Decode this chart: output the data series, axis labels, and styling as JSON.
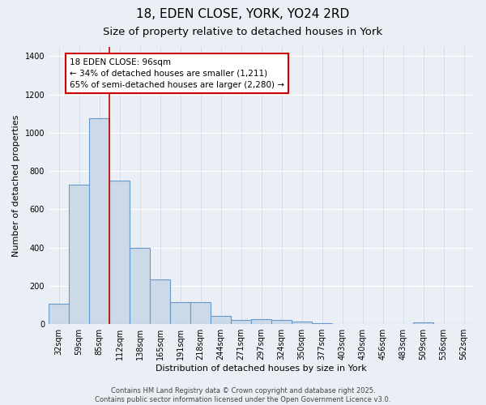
{
  "title": "18, EDEN CLOSE, YORK, YO24 2RD",
  "subtitle": "Size of property relative to detached houses in York",
  "xlabel": "Distribution of detached houses by size in York",
  "ylabel": "Number of detached properties",
  "bin_labels": [
    "32sqm",
    "59sqm",
    "85sqm",
    "112sqm",
    "138sqm",
    "165sqm",
    "191sqm",
    "218sqm",
    "244sqm",
    "271sqm",
    "297sqm",
    "324sqm",
    "350sqm",
    "377sqm",
    "403sqm",
    "430sqm",
    "456sqm",
    "483sqm",
    "509sqm",
    "536sqm",
    "562sqm"
  ],
  "bin_values": [
    105,
    730,
    1075,
    750,
    400,
    235,
    115,
    115,
    45,
    20,
    25,
    20,
    15,
    5,
    0,
    0,
    0,
    0,
    10,
    0,
    0
  ],
  "bar_color": "#ccd9e8",
  "bar_edge_color": "#6699cc",
  "bar_edge_width": 0.8,
  "background_color": "#eaeef5",
  "annotation_text": "18 EDEN CLOSE: 96sqm\n← 34% of detached houses are smaller (1,211)\n65% of semi-detached houses are larger (2,280) →",
  "annotation_box_color": "#ffffff",
  "annotation_box_edge": "#cc0000",
  "red_line_color": "#cc0000",
  "red_line_x": 2.5,
  "ylim": [
    0,
    1450
  ],
  "yticks": [
    0,
    200,
    400,
    600,
    800,
    1000,
    1200,
    1400
  ],
  "copyright_text": "Contains HM Land Registry data © Crown copyright and database right 2025.\nContains public sector information licensed under the Open Government Licence v3.0.",
  "title_fontsize": 11,
  "subtitle_fontsize": 9.5,
  "label_fontsize": 8,
  "tick_fontsize": 7,
  "annotation_fontsize": 7.5,
  "copyright_fontsize": 6
}
